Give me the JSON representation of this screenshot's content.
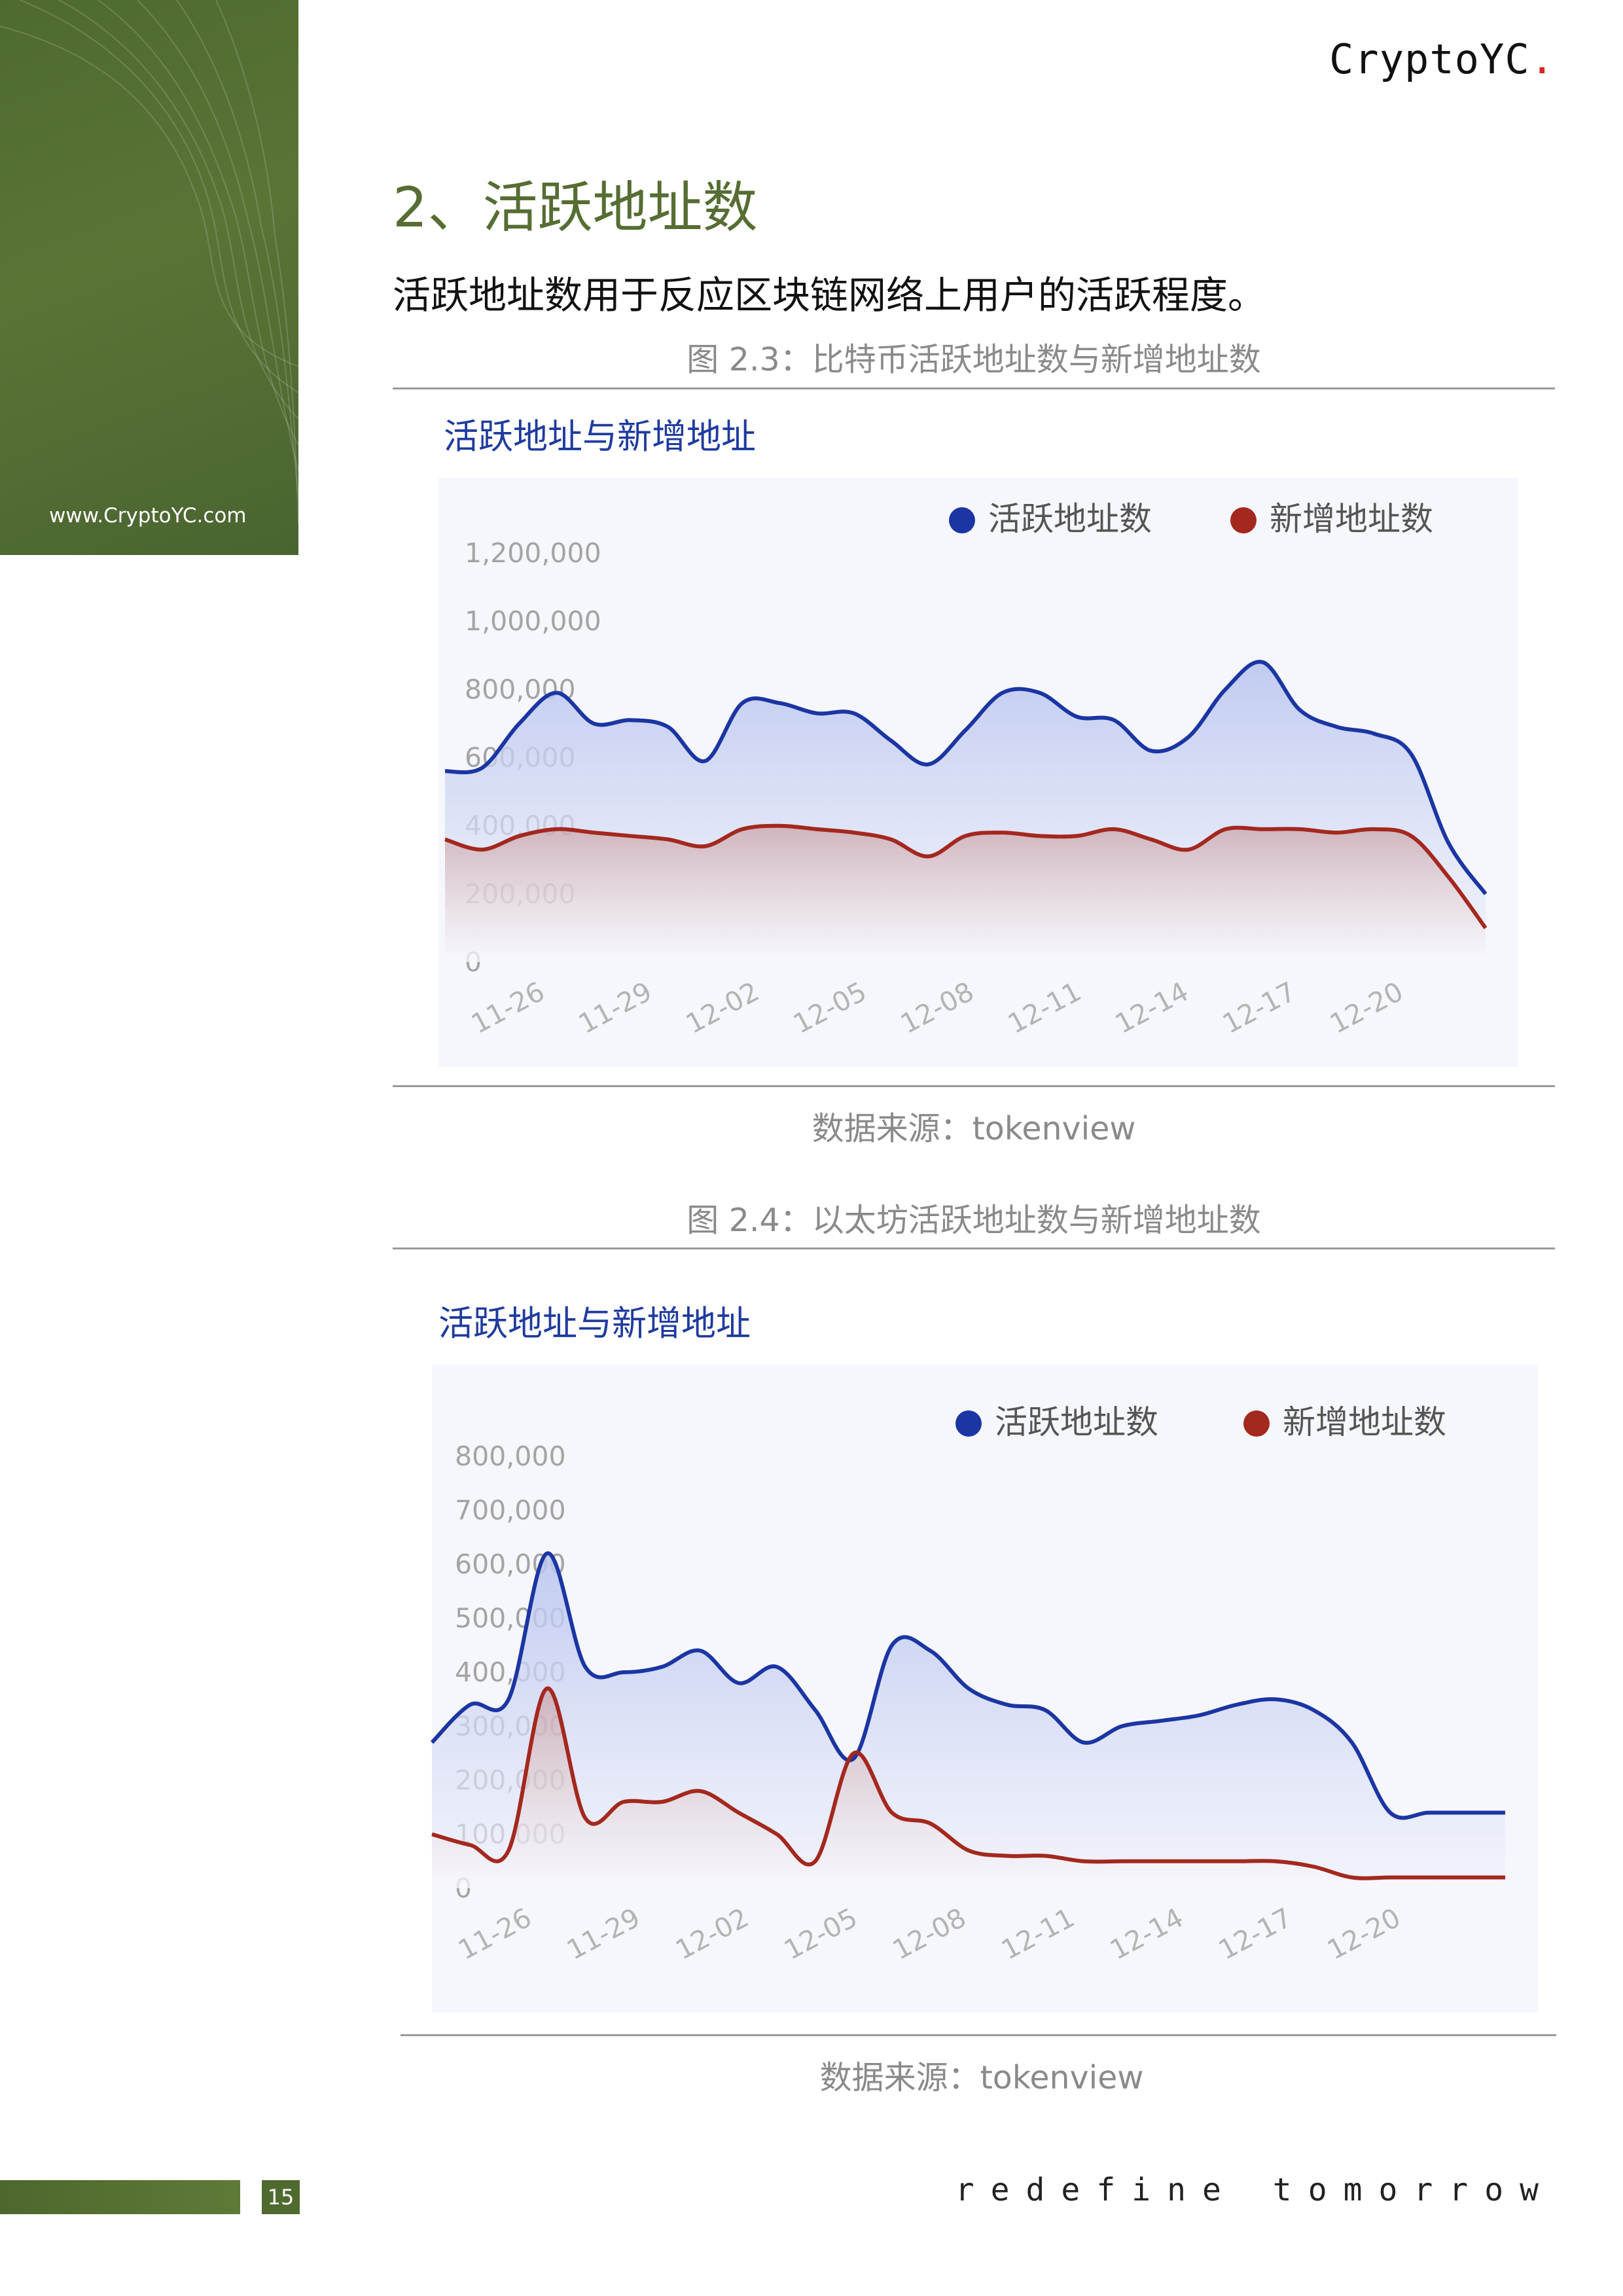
{
  "brand": {
    "name": "CryptoYC",
    "dot": "."
  },
  "sidebar": {
    "url": "www.CryptoYC.com"
  },
  "section": {
    "title": "2、活跃地址数"
  },
  "intro": "活跃地址数用于反应区块链网络上用户的活跃程度。",
  "figure1": {
    "caption": "图 2.3：比特币活跃地址数与新增地址数",
    "source": "数据来源：tokenview"
  },
  "figure2": {
    "caption": "图 2.4：以太坊活跃地址数与新增地址数",
    "source": "数据来源：tokenview"
  },
  "footer": {
    "page": "15",
    "tagline": "redefine tomorrow"
  },
  "colors": {
    "accent_green": "#566d33",
    "active": "#1b35a3",
    "new": "#a3281e"
  },
  "chart_data": [
    {
      "type": "area",
      "title": "活跃地址与新增地址",
      "legend_position": "top-right",
      "x_ticks": [
        "11-26",
        "11-29",
        "12-02",
        "12-05",
        "12-08",
        "12-11",
        "12-14",
        "12-17",
        "12-20"
      ],
      "x": [
        "11-24",
        "11-25",
        "11-26",
        "11-27",
        "11-28",
        "11-29",
        "11-30",
        "12-01",
        "12-02",
        "12-03",
        "12-04",
        "12-05",
        "12-06",
        "12-07",
        "12-08",
        "12-09",
        "12-10",
        "12-11",
        "12-12",
        "12-13",
        "12-14",
        "12-15",
        "12-16",
        "12-17",
        "12-18",
        "12-19",
        "12-20",
        "12-21",
        "12-22"
      ],
      "ylim": [
        0,
        1200000
      ],
      "y_ticks": [
        "1,200,000",
        "1,000,000",
        "800,000",
        "600,000",
        "400,000",
        "200,000",
        "0"
      ],
      "series": [
        {
          "name": "活跃地址数",
          "values": [
            560000,
            570000,
            700000,
            790000,
            700000,
            710000,
            690000,
            590000,
            760000,
            760000,
            730000,
            730000,
            650000,
            580000,
            680000,
            790000,
            790000,
            720000,
            710000,
            620000,
            660000,
            800000,
            880000,
            740000,
            690000,
            670000,
            610000,
            350000,
            200000
          ]
        },
        {
          "name": "新增地址数",
          "values": [
            360000,
            330000,
            370000,
            390000,
            380000,
            370000,
            360000,
            340000,
            390000,
            400000,
            390000,
            380000,
            360000,
            310000,
            370000,
            380000,
            370000,
            370000,
            390000,
            360000,
            330000,
            390000,
            390000,
            390000,
            380000,
            390000,
            370000,
            250000,
            100000
          ]
        }
      ]
    },
    {
      "type": "area",
      "title": "活跃地址与新增地址",
      "legend_position": "top-right",
      "x_ticks": [
        "11-26",
        "11-29",
        "12-02",
        "12-05",
        "12-08",
        "12-11",
        "12-14",
        "12-17",
        "12-20"
      ],
      "x": [
        "11-24",
        "11-25",
        "11-26",
        "11-27",
        "11-28",
        "11-29",
        "11-30",
        "12-01",
        "12-02",
        "12-03",
        "12-04",
        "12-05",
        "12-06",
        "12-07",
        "12-08",
        "12-09",
        "12-10",
        "12-11",
        "12-12",
        "12-13",
        "12-14",
        "12-15",
        "12-16",
        "12-17",
        "12-18",
        "12-19",
        "12-20",
        "12-21",
        "12-22"
      ],
      "ylim": [
        0,
        800000
      ],
      "y_ticks": [
        "800,000",
        "700,000",
        "600,000",
        "500,000",
        "400,000",
        "300,000",
        "200,000",
        "100,000",
        "0"
      ],
      "series": [
        {
          "name": "活跃地址数",
          "values": [
            270000,
            340000,
            350000,
            620000,
            410000,
            400000,
            410000,
            440000,
            380000,
            410000,
            330000,
            240000,
            450000,
            440000,
            370000,
            340000,
            330000,
            270000,
            300000,
            310000,
            320000,
            340000,
            350000,
            330000,
            270000,
            140000,
            140000,
            140000,
            140000
          ]
        },
        {
          "name": "新增地址数",
          "values": [
            100000,
            80000,
            70000,
            370000,
            130000,
            160000,
            160000,
            180000,
            140000,
            100000,
            50000,
            250000,
            140000,
            120000,
            70000,
            60000,
            60000,
            50000,
            50000,
            50000,
            50000,
            50000,
            50000,
            40000,
            20000,
            20000,
            20000,
            20000,
            20000
          ]
        }
      ]
    }
  ]
}
